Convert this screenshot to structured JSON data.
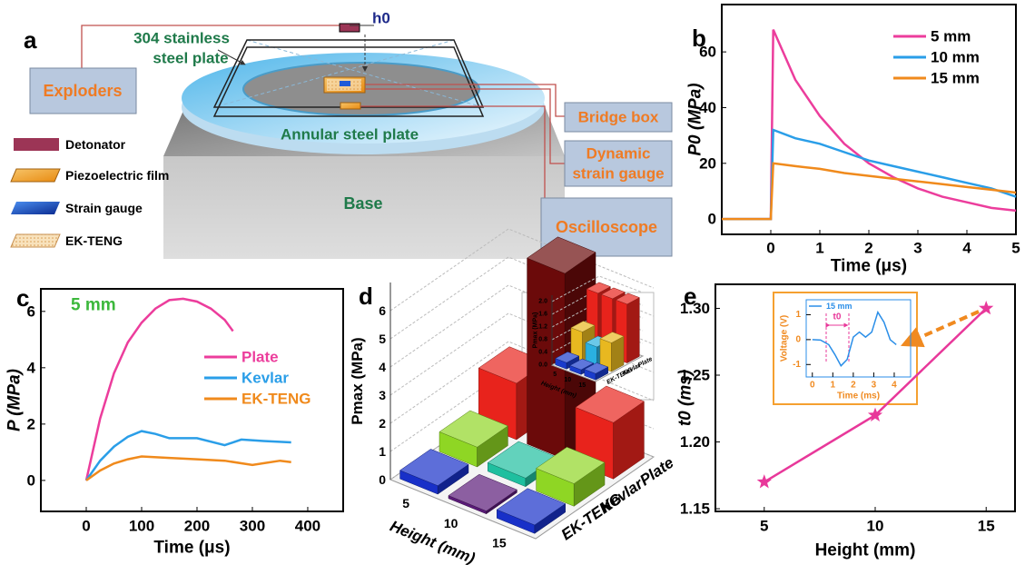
{
  "diagram": {
    "panel_label": "a",
    "plate_label": [
      "304 stainless",
      "steel plate"
    ],
    "h0": "h0",
    "exploders": "Exploders",
    "legend": [
      "Detonator",
      "Piezoelectric film",
      "Strain gauge",
      "EK-TENG"
    ],
    "annular": "Annular steel plate",
    "base": "Base",
    "bridge_box": "Bridge box",
    "strain_gauge_box": [
      "Dynamic",
      "strain gauge"
    ],
    "oscilloscope": "Oscilloscope"
  },
  "chart_data": [
    {
      "type": "line",
      "panel_label": "b",
      "x": [
        -1,
        0,
        0.05,
        0.5,
        1,
        1.5,
        2,
        2.5,
        3,
        3.5,
        4,
        4.5,
        5
      ],
      "series": [
        {
          "name": "5 mm",
          "color": "#ec3d9c",
          "values": [
            0,
            0,
            68,
            50,
            37,
            27,
            20,
            15,
            11,
            8,
            6,
            4,
            3
          ]
        },
        {
          "name": "10 mm",
          "color": "#2a9ee8",
          "values": [
            0,
            0,
            32,
            29,
            27,
            24,
            21,
            19,
            17,
            15,
            13,
            11,
            8
          ]
        },
        {
          "name": "15 mm",
          "color": "#f08a1c",
          "values": [
            0,
            0,
            20,
            19,
            18,
            16.5,
            15.5,
            14.5,
            13.5,
            12.5,
            11.5,
            10.5,
            9.5
          ]
        }
      ],
      "xlim": [
        -1,
        5
      ],
      "ylim": [
        -5.5,
        77
      ],
      "xticks": [
        0,
        1,
        2,
        3,
        4,
        5
      ],
      "yticks": [
        0,
        20,
        40,
        60
      ],
      "xlabel": "Time (μs)",
      "ylabel": "P0 (MPa)",
      "legend": "upper right"
    },
    {
      "type": "line",
      "panel_label": "c",
      "annotation": "5 mm",
      "series": [
        {
          "name": "Plate",
          "color": "#ec3d9c",
          "x": [
            0,
            25,
            50,
            75,
            100,
            125,
            150,
            175,
            200,
            225,
            250,
            265
          ],
          "values": [
            0,
            2.2,
            3.8,
            4.9,
            5.6,
            6.1,
            6.4,
            6.45,
            6.35,
            6.1,
            5.7,
            5.3
          ]
        },
        {
          "name": "Kevlar",
          "color": "#2a9ee8",
          "x": [
            0,
            25,
            50,
            75,
            100,
            125,
            150,
            200,
            250,
            280,
            320,
            370
          ],
          "values": [
            0,
            0.7,
            1.2,
            1.55,
            1.75,
            1.65,
            1.5,
            1.5,
            1.25,
            1.45,
            1.4,
            1.35
          ]
        },
        {
          "name": "EK-TENG",
          "color": "#f08a1c",
          "x": [
            0,
            25,
            50,
            75,
            100,
            150,
            200,
            250,
            300,
            350,
            370
          ],
          "values": [
            0,
            0.35,
            0.6,
            0.75,
            0.85,
            0.8,
            0.75,
            0.7,
            0.55,
            0.7,
            0.65
          ]
        }
      ],
      "xlim": [
        -82,
        464
      ],
      "ylim": [
        -1.1,
        6.8
      ],
      "xticks": [
        0,
        100,
        200,
        300,
        400
      ],
      "yticks": [
        0,
        2,
        4,
        6
      ],
      "xlabel": "Time (μs)",
      "ylabel": "P (MPa)",
      "legend": "center right"
    },
    {
      "type": "bar3d",
      "panel_label": "d",
      "categories": [
        "5",
        "10",
        "15"
      ],
      "series": [
        {
          "name": "Plate",
          "colors": [
            "#e8231c",
            "#6b0a0a",
            "#e8231c"
          ],
          "values": [
            2.0,
            6.6,
            2.0
          ]
        },
        {
          "name": "Kevlar",
          "colors": [
            "#8fd624",
            "#1fbf9f",
            "#8fd624"
          ],
          "values": [
            0.7,
            0.3,
            0.8
          ]
        },
        {
          "name": "EK-TENG",
          "colors": [
            "#1830c8",
            "#5a1a78",
            "#1830c8"
          ],
          "values": [
            0.3,
            0.1,
            0.3
          ]
        }
      ],
      "ylim": [
        0,
        7
      ],
      "yticks": [
        0,
        1,
        2,
        3,
        4,
        5,
        6
      ],
      "xlabel": "Height (mm)",
      "ylabel": "Pmax (MPa)"
    },
    {
      "type": "bar3d",
      "categories": [
        "5",
        "10",
        "15"
      ],
      "series": [
        {
          "name": "Plate",
          "colors": [
            "#e8231c",
            "#e8231c",
            "#e8231c"
          ],
          "values": [
            1.85,
            1.85,
            1.85
          ]
        },
        {
          "name": "Kevlar",
          "colors": [
            "#e8b820",
            "#2ab0e0",
            "#e8b820"
          ],
          "values": [
            0.9,
            0.6,
            0.9
          ]
        },
        {
          "name": "EK-TENG",
          "colors": [
            "#1a3ccc",
            "#1a3ccc",
            "#1a3ccc"
          ],
          "values": [
            0.2,
            0.15,
            0.2
          ]
        }
      ],
      "ylim": [
        0,
        2.2
      ],
      "yticks": [
        {
          "value": 0,
          "label": "0.0"
        },
        {
          "value": 0.4,
          "label": "0.4"
        },
        {
          "value": 0.8,
          "label": "0.8"
        },
        {
          "value": 1.2,
          "label": "1.2"
        },
        {
          "value": 1.6,
          "label": "1.6"
        },
        {
          "value": 2,
          "label": "2.0"
        }
      ],
      "xlabel": "Height (mm)",
      "ylabel": "Pmax (MPa)"
    },
    {
      "type": "scatter",
      "panel_label": "e",
      "x": [
        5,
        10,
        15
      ],
      "values": [
        1.17,
        1.22,
        1.3
      ],
      "color": "#e8389a",
      "line": true,
      "xlim": [
        2.8,
        16.3
      ],
      "ylim": [
        1.148,
        1.318
      ],
      "xticks": [
        5,
        10,
        15
      ],
      "yticks": [
        {
          "value": 1.15,
          "label": "1.15"
        },
        {
          "value": 1.2,
          "label": "1.20"
        },
        {
          "value": 1.25,
          "label": "1.25"
        },
        {
          "value": 1.3,
          "label": "1.30"
        }
      ],
      "xlabel": "Height (mm)",
      "ylabel": "t0 (ms)"
    },
    {
      "type": "line",
      "annotation": "t0",
      "x": [
        0,
        0.4,
        0.8,
        1.1,
        1.4,
        1.7,
        2.0,
        2.3,
        2.6,
        2.9,
        3.2,
        3.5,
        3.8,
        4.1
      ],
      "series": [
        {
          "name": "15 mm",
          "color": "#2a8ee8",
          "values": [
            0,
            -0.02,
            -0.2,
            -0.6,
            -1.05,
            -0.8,
            0.1,
            0.3,
            0.1,
            0.3,
            1.1,
            0.7,
            0,
            -0.2
          ]
        }
      ],
      "xlim": [
        -0.3,
        4.8
      ],
      "ylim": [
        -1.5,
        1.6
      ],
      "xticks": [
        0,
        1,
        2,
        3,
        4
      ],
      "yticks": [
        -1,
        0,
        1
      ],
      "xlabel": "Time (ms)",
      "ylabel": "Voltage (V)",
      "legend": "upper left"
    }
  ]
}
